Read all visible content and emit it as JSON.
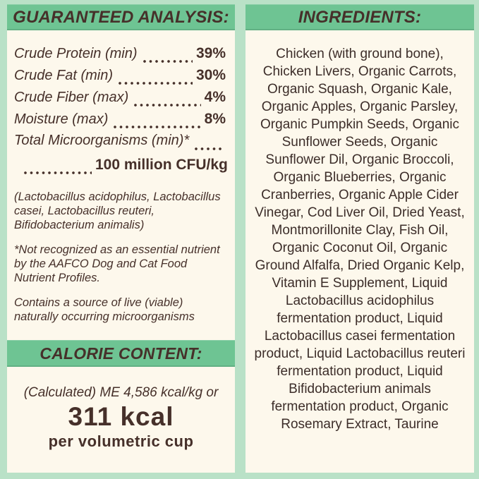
{
  "colors": {
    "background": "#b9e1c7",
    "banner": "#6ec493",
    "banner-edge": "#57a97c",
    "panel": "#fdf8ec",
    "brown": "#46302a"
  },
  "left_panel": {
    "header": "GUARANTEED ANALYSIS:",
    "rows": [
      {
        "label": "Crude Protein (min)",
        "value": "39%"
      },
      {
        "label": "Crude Fat (min)",
        "value": "30%"
      },
      {
        "label": "Crude Fiber (max)",
        "value": "4%"
      },
      {
        "label": "Moisture (max)",
        "value": "8%"
      }
    ],
    "microorganisms": {
      "label": "Total Microorganisms (min)*",
      "value": "100 million CFU/kg"
    },
    "notes": [
      "(Lactobacillus acidophilus, Lactobacillus casei, Lactobacillus reuteri, Bifidobacterium animalis)",
      "*Not recognized as an essential nutrient by the AAFCO Dog and Cat Food Nutrient Profiles.",
      "Contains a source of live (viable) naturally occurring microorganisms"
    ],
    "calorie": {
      "header": "CALORIE CONTENT:",
      "line1": "(Calculated) ME 4,586 kcal/kg or",
      "value": "311 kcal",
      "line2": "per volumetric cup"
    }
  },
  "right_panel": {
    "header": "INGREDIENTS:",
    "ingredients": "Chicken (with ground bone), Chicken Livers, Organic Carrots, Organic Squash, Organic Kale, Organic Apples, Organic Parsley, Organic Pumpkin Seeds, Organic Sunflower Seeds, Organic Sunflower Dil, Organic Broccoli, Organic Blueberries, Organic Cranberries, Organic Apple Cider Vinegar, Cod Liver Oil, Dried Yeast, Montmorillonite Clay, Fish Oil, Organic Coconut Oil, Organic Ground Alfalfa, Dried Organic Kelp, Vitamin E Supplement, Liquid Lactobacillus acidophilus fermentation product, Liquid Lactobacillus casei fermentation product, Liquid Lactobacillus reuteri fermentation product, Liquid Bifidobacterium animals fermentation product, Organic Rosemary Extract, Taurine"
  }
}
